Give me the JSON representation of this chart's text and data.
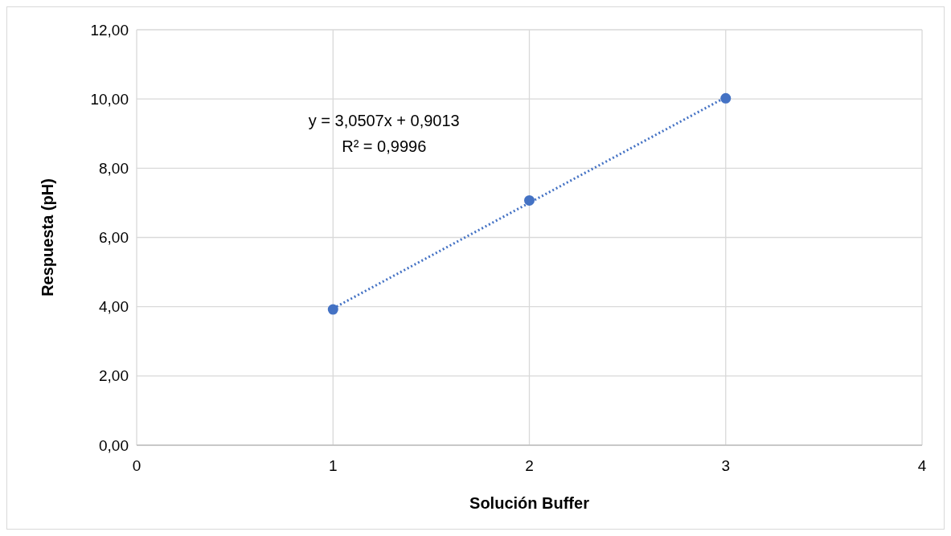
{
  "chart_data": {
    "type": "scatter",
    "xlabel": "Solución Buffer",
    "ylabel": "Respuesta (pH)",
    "x": [
      1,
      2,
      3
    ],
    "series": [
      {
        "type": "scatter",
        "color": "#4472c4",
        "marker": "circle",
        "values": [
          3.92,
          7.07,
          10.02
        ]
      },
      {
        "type": "line",
        "color": "#4472c4",
        "line_style": "dotted",
        "marker": "none",
        "x": [
          1,
          3
        ],
        "values": [
          3.95,
          10.05
        ]
      }
    ],
    "xlim": [
      0,
      4
    ],
    "xticks": [
      0,
      1,
      2,
      3,
      4
    ],
    "ylim": [
      0,
      12
    ],
    "yticks": [
      {
        "value": 0,
        "label": "0,00"
      },
      {
        "value": 2,
        "label": "2,00"
      },
      {
        "value": 4,
        "label": "4,00"
      },
      {
        "value": 6,
        "label": "6,00"
      },
      {
        "value": 8,
        "label": "8,00"
      },
      {
        "value": 10,
        "label": "10,00"
      },
      {
        "value": 12,
        "label": "12,00"
      }
    ],
    "grid": true,
    "annotations": [
      "y = 3,0507x + 0,9013",
      "R² = 0,9996"
    ]
  }
}
